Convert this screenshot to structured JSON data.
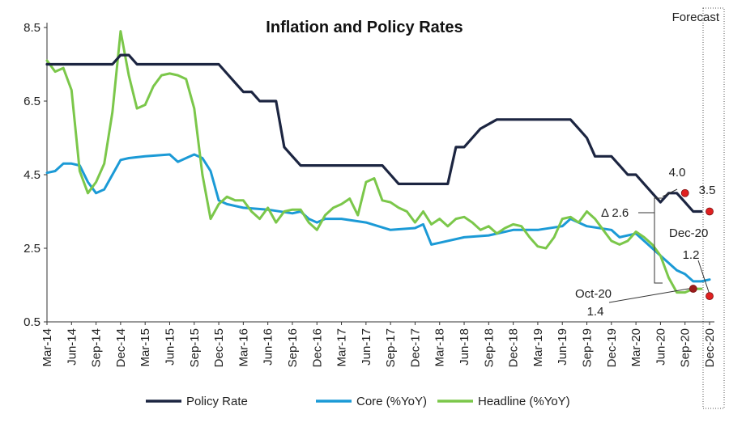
{
  "chart_data": {
    "type": "line",
    "title": "Inflation and Policy Rates",
    "forecast_label": "Forecast",
    "ylim": [
      0.5,
      8.5
    ],
    "yticks": [
      "8.5",
      "6.5",
      "4.5",
      "2.5",
      "0.5"
    ],
    "ytick_values": [
      8.5,
      6.5,
      4.5,
      2.5,
      0.5
    ],
    "xticks": [
      "Mar-14",
      "Jun-14",
      "Sep-14",
      "Dec-14",
      "Mar-15",
      "Jun-15",
      "Sep-15",
      "Dec-15",
      "Mar-16",
      "Jun-16",
      "Sep-16",
      "Dec-16",
      "Mar-17",
      "Jun-17",
      "Sep-17",
      "Dec-17",
      "Mar-18",
      "Jun-18",
      "Sep-18",
      "Dec-18",
      "Mar-19",
      "Jun-19",
      "Sep-19",
      "Dec-19",
      "Mar-20",
      "Jun-20",
      "Sep-20",
      "Dec-20"
    ],
    "x_months_start": "2014-03",
    "x_months_end": "2020-12",
    "forecast_start": "2020-11",
    "grid": false,
    "legend_position": "bottom",
    "series": [
      {
        "name": "Policy Rate",
        "color": "#1c2541",
        "points": [
          [
            "2014-03",
            7.5
          ],
          [
            "2014-06",
            7.5
          ],
          [
            "2014-09",
            7.5
          ],
          [
            "2014-11",
            7.5
          ],
          [
            "2014-12",
            7.75
          ],
          [
            "2015-01",
            7.75
          ],
          [
            "2015-02",
            7.5
          ],
          [
            "2015-06",
            7.5
          ],
          [
            "2015-09",
            7.5
          ],
          [
            "2015-12",
            7.5
          ],
          [
            "2016-02",
            7.0
          ],
          [
            "2016-03",
            6.75
          ],
          [
            "2016-04",
            6.75
          ],
          [
            "2016-05",
            6.5
          ],
          [
            "2016-07",
            6.5
          ],
          [
            "2016-08",
            5.25
          ],
          [
            "2016-09",
            5.0
          ],
          [
            "2016-10",
            4.75
          ],
          [
            "2016-12",
            4.75
          ],
          [
            "2017-03",
            4.75
          ],
          [
            "2017-06",
            4.75
          ],
          [
            "2017-08",
            4.75
          ],
          [
            "2017-09",
            4.5
          ],
          [
            "2017-10",
            4.25
          ],
          [
            "2017-12",
            4.25
          ],
          [
            "2018-03",
            4.25
          ],
          [
            "2018-04",
            4.25
          ],
          [
            "2018-05",
            5.25
          ],
          [
            "2018-06",
            5.25
          ],
          [
            "2018-07",
            5.5
          ],
          [
            "2018-08",
            5.75
          ],
          [
            "2018-10",
            6.0
          ],
          [
            "2018-12",
            6.0
          ],
          [
            "2019-03",
            6.0
          ],
          [
            "2019-06",
            6.0
          ],
          [
            "2019-07",
            6.0
          ],
          [
            "2019-08",
            5.75
          ],
          [
            "2019-09",
            5.5
          ],
          [
            "2019-10",
            5.0
          ],
          [
            "2019-12",
            5.0
          ],
          [
            "2020-01",
            4.75
          ],
          [
            "2020-02",
            4.5
          ],
          [
            "2020-03",
            4.5
          ],
          [
            "2020-04",
            4.25
          ],
          [
            "2020-05",
            4.0
          ],
          [
            "2020-06",
            3.75
          ],
          [
            "2020-07",
            4.0
          ],
          [
            "2020-08",
            4.0
          ],
          [
            "2020-09",
            3.75
          ],
          [
            "2020-10",
            3.5
          ],
          [
            "2020-11",
            3.5
          ]
        ]
      },
      {
        "name": "Core (%YoY)",
        "color": "#1b9ad6",
        "points": [
          [
            "2014-03",
            4.55
          ],
          [
            "2014-04",
            4.6
          ],
          [
            "2014-05",
            4.8
          ],
          [
            "2014-06",
            4.8
          ],
          [
            "2014-07",
            4.75
          ],
          [
            "2014-08",
            4.3
          ],
          [
            "2014-09",
            4.0
          ],
          [
            "2014-10",
            4.1
          ],
          [
            "2014-11",
            4.5
          ],
          [
            "2014-12",
            4.9
          ],
          [
            "2015-01",
            4.95
          ],
          [
            "2015-03",
            5.0
          ],
          [
            "2015-06",
            5.05
          ],
          [
            "2015-07",
            4.85
          ],
          [
            "2015-08",
            4.95
          ],
          [
            "2015-09",
            5.05
          ],
          [
            "2015-10",
            4.95
          ],
          [
            "2015-11",
            4.6
          ],
          [
            "2015-12",
            3.8
          ],
          [
            "2016-01",
            3.7
          ],
          [
            "2016-03",
            3.6
          ],
          [
            "2016-06",
            3.55
          ],
          [
            "2016-09",
            3.45
          ],
          [
            "2016-10",
            3.5
          ],
          [
            "2016-11",
            3.3
          ],
          [
            "2016-12",
            3.2
          ],
          [
            "2017-01",
            3.3
          ],
          [
            "2017-03",
            3.3
          ],
          [
            "2017-06",
            3.2
          ],
          [
            "2017-09",
            3.0
          ],
          [
            "2017-12",
            3.05
          ],
          [
            "2018-01",
            3.15
          ],
          [
            "2018-02",
            2.6
          ],
          [
            "2018-03",
            2.65
          ],
          [
            "2018-06",
            2.8
          ],
          [
            "2018-09",
            2.85
          ],
          [
            "2018-12",
            3.0
          ],
          [
            "2019-03",
            3.0
          ],
          [
            "2019-06",
            3.1
          ],
          [
            "2019-07",
            3.3
          ],
          [
            "2019-09",
            3.1
          ],
          [
            "2019-12",
            3.0
          ],
          [
            "2020-01",
            2.8
          ],
          [
            "2020-03",
            2.9
          ],
          [
            "2020-04",
            2.7
          ],
          [
            "2020-06",
            2.3
          ],
          [
            "2020-08",
            1.9
          ],
          [
            "2020-09",
            1.8
          ],
          [
            "2020-10",
            1.6
          ],
          [
            "2020-11",
            1.6
          ],
          [
            "2020-12",
            1.65
          ]
        ]
      },
      {
        "name": "Headline (%YoY)",
        "color": "#7bc74a",
        "points": [
          [
            "2014-03",
            7.6
          ],
          [
            "2014-04",
            7.3
          ],
          [
            "2014-05",
            7.4
          ],
          [
            "2014-06",
            6.8
          ],
          [
            "2014-07",
            4.6
          ],
          [
            "2014-08",
            4.0
          ],
          [
            "2014-09",
            4.3
          ],
          [
            "2014-10",
            4.8
          ],
          [
            "2014-11",
            6.2
          ],
          [
            "2014-12",
            8.4
          ],
          [
            "2015-01",
            7.2
          ],
          [
            "2015-02",
            6.3
          ],
          [
            "2015-03",
            6.4
          ],
          [
            "2015-04",
            6.9
          ],
          [
            "2015-05",
            7.2
          ],
          [
            "2015-06",
            7.25
          ],
          [
            "2015-07",
            7.2
          ],
          [
            "2015-08",
            7.1
          ],
          [
            "2015-09",
            6.3
          ],
          [
            "2015-10",
            4.5
          ],
          [
            "2015-11",
            3.3
          ],
          [
            "2015-12",
            3.7
          ],
          [
            "2016-01",
            3.9
          ],
          [
            "2016-02",
            3.8
          ],
          [
            "2016-03",
            3.8
          ],
          [
            "2016-04",
            3.5
          ],
          [
            "2016-05",
            3.3
          ],
          [
            "2016-06",
            3.6
          ],
          [
            "2016-07",
            3.2
          ],
          [
            "2016-08",
            3.5
          ],
          [
            "2016-09",
            3.55
          ],
          [
            "2016-10",
            3.55
          ],
          [
            "2016-11",
            3.2
          ],
          [
            "2016-12",
            3.0
          ],
          [
            "2017-01",
            3.4
          ],
          [
            "2017-02",
            3.6
          ],
          [
            "2017-03",
            3.7
          ],
          [
            "2017-04",
            3.85
          ],
          [
            "2017-05",
            3.4
          ],
          [
            "2017-06",
            4.3
          ],
          [
            "2017-07",
            4.4
          ],
          [
            "2017-08",
            3.8
          ],
          [
            "2017-09",
            3.75
          ],
          [
            "2017-10",
            3.6
          ],
          [
            "2017-11",
            3.5
          ],
          [
            "2017-12",
            3.2
          ],
          [
            "2018-01",
            3.5
          ],
          [
            "2018-02",
            3.15
          ],
          [
            "2018-03",
            3.3
          ],
          [
            "2018-04",
            3.1
          ],
          [
            "2018-05",
            3.3
          ],
          [
            "2018-06",
            3.35
          ],
          [
            "2018-07",
            3.2
          ],
          [
            "2018-08",
            3.0
          ],
          [
            "2018-09",
            3.1
          ],
          [
            "2018-10",
            2.9
          ],
          [
            "2018-11",
            3.05
          ],
          [
            "2018-12",
            3.15
          ],
          [
            "2019-01",
            3.1
          ],
          [
            "2019-02",
            2.8
          ],
          [
            "2019-03",
            2.55
          ],
          [
            "2019-04",
            2.5
          ],
          [
            "2019-05",
            2.8
          ],
          [
            "2019-06",
            3.3
          ],
          [
            "2019-07",
            3.35
          ],
          [
            "2019-08",
            3.2
          ],
          [
            "2019-09",
            3.5
          ],
          [
            "2019-10",
            3.3
          ],
          [
            "2019-11",
            3.0
          ],
          [
            "2019-12",
            2.7
          ],
          [
            "2020-01",
            2.6
          ],
          [
            "2020-02",
            2.7
          ],
          [
            "2020-03",
            2.95
          ],
          [
            "2020-04",
            2.8
          ],
          [
            "2020-05",
            2.6
          ],
          [
            "2020-06",
            2.3
          ],
          [
            "2020-07",
            1.7
          ],
          [
            "2020-08",
            1.3
          ],
          [
            "2020-09",
            1.3
          ],
          [
            "2020-10",
            1.4
          ],
          [
            "2020-11",
            1.4
          ]
        ]
      }
    ],
    "markers": [
      {
        "x": "2020-09",
        "y": 4.0,
        "color": "#e02020"
      },
      {
        "x": "2020-12",
        "y": 3.5,
        "color": "#e02020"
      },
      {
        "x": "2020-10",
        "y": 1.4,
        "color": "#9b1b1b"
      },
      {
        "x": "2020-12",
        "y": 1.2,
        "color": "#e02020"
      }
    ],
    "annotations": {
      "val_40": "4.0",
      "val_35": "3.5",
      "delta": "Δ 2.6",
      "dec20": "Dec-20",
      "val_12": "1.2",
      "oct20": "Oct-20",
      "val_14": "1.4"
    }
  }
}
